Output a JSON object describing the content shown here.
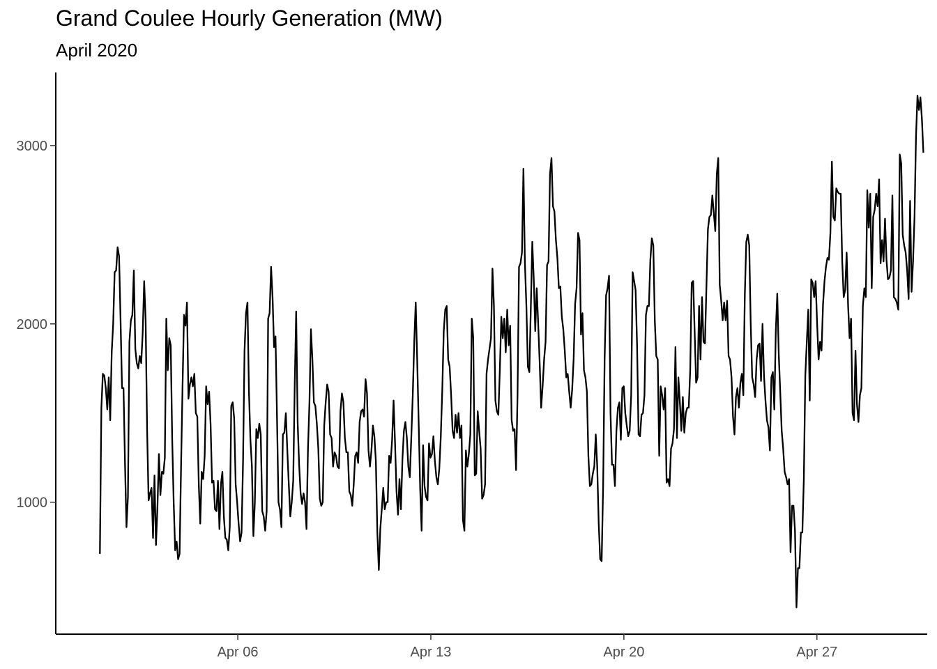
{
  "chart_data": {
    "type": "line",
    "title": "Grand Coulee Hourly Generation (MW)",
    "subtitle": "April 2020",
    "xlabel": "",
    "ylabel": "",
    "x_domain": [
      "2020-04-01",
      "2020-05-01"
    ],
    "xlim_days": [
      30.4,
      62.0
    ],
    "ylim": [
      260,
      3410
    ],
    "grid": false,
    "line_color": "#000000",
    "x_ticks": [
      {
        "day": 37,
        "label": "Apr 06"
      },
      {
        "day": 44,
        "label": "Apr 13"
      },
      {
        "day": 51,
        "label": "Apr 20"
      },
      {
        "day": 58,
        "label": "Apr 27"
      }
    ],
    "y_ticks": [
      {
        "value": 1000,
        "label": "1000"
      },
      {
        "value": 2000,
        "label": "2000"
      },
      {
        "value": 3000,
        "label": "3000"
      }
    ],
    "series": [
      {
        "values_every_2h": [
          710,
          1530,
          1720,
          1710,
          1640,
          1520,
          1700,
          1460,
          1840,
          2000,
          2290,
          2300,
          2430,
          2380,
          2020,
          1640,
          1640,
          1220,
          860,
          1030,
          1900,
          2020,
          2050,
          2300,
          1860,
          1780,
          1750,
          1820,
          1780,
          1950,
          2240,
          2020,
          1400,
          1010,
          1050,
          1080,
          800,
          1150,
          760,
          970,
          1270,
          1040,
          1170,
          1160,
          1250,
          2030,
          1740,
          1920,
          1880,
          1350,
          1000,
          730,
          780,
          680,
          710,
          1200,
          1650,
          2050,
          1990,
          2120,
          1580,
          1660,
          1700,
          1650,
          1720,
          1500,
          1480,
          1100,
          880,
          1170,
          1130,
          1260,
          1650,
          1550,
          1620,
          1440,
          1110,
          1120,
          960,
          950,
          1120,
          850,
          1100,
          1170,
          920,
          800,
          790,
          730,
          860,
          1540,
          1560,
          1470,
          1100,
          1000,
          880,
          780,
          830,
          1230,
          1850,
          2060,
          2120,
          1620,
          1350,
          1200,
          810,
          1000,
          1410,
          1360,
          1440,
          1380,
          950,
          920,
          840,
          950,
          2030,
          2060,
          2320,
          2150,
          1870,
          1930,
          1480,
          1000,
          960,
          860,
          1380,
          1390,
          1500,
          1290,
          1100,
          920,
          1000,
          1120,
          1650,
          2070,
          1450,
          1210,
          1050,
          990,
          1050,
          1000,
          850,
          1300,
          1560,
          1970,
          1800,
          1560,
          1540,
          1440,
          1300,
          1020,
          980,
          1000,
          1430,
          1560,
          1660,
          1620,
          1380,
          1360,
          1200,
          1280,
          1260,
          1200,
          1190,
          1510,
          1610,
          1560,
          1360,
          1280,
          1280,
          1060,
          1040,
          980,
          1100,
          1260,
          1280,
          1220,
          1450,
          1510,
          1520,
          1480,
          1690,
          1610,
          1290,
          1200,
          1290,
          1430,
          1370,
          1230,
          830,
          620,
          850,
          960,
          1080,
          960,
          1000,
          1000,
          1260,
          1220,
          1350,
          1570,
          1330,
          1060,
          930,
          1130,
          960,
          1240,
          1400,
          1450,
          1360,
          1200,
          1140,
          1360,
          1600,
          1900,
          2120,
          1800,
          1450,
          1080,
          840,
          1320,
          1090,
          1030,
          1010,
          1330,
          1250,
          1270,
          1370,
          1230,
          1140,
          1100,
          1190,
          1370,
          1630,
          1960,
          2080,
          2100,
          1800,
          1760,
          1600,
          1400,
          1360,
          1490,
          1390,
          1500,
          1360,
          1430,
          900,
          840,
          1290,
          1200,
          1270,
          1380,
          2030,
          1920,
          1150,
          1160,
          1510,
          1400,
          1300,
          1020,
          1040,
          1100,
          1720,
          1800,
          1860,
          1920,
          2310,
          2100,
          1570,
          1510,
          1490,
          1740,
          2040,
          1920,
          2030,
          1840,
          2080,
          1880,
          1990,
          1460,
          1400,
          1410,
          1180,
          1600,
          2320,
          2340,
          2400,
          2870,
          2340,
          2100,
          1760,
          1730,
          2090,
          2460,
          2250,
          1960,
          2200,
          2000,
          1780,
          1530,
          1650,
          1800,
          1900,
          2330,
          2350,
          2840,
          2930,
          2660,
          2630,
          2470,
          2370,
          2200,
          2210,
          2040,
          1970,
          1850,
          1700,
          1720,
          1620,
          1530,
          1630,
          1800,
          2110,
          2200,
          2510,
          2470,
          1940,
          2060,
          1740,
          1700,
          1620,
          1260,
          1090,
          1100,
          1160,
          1200,
          1380,
          1200,
          880,
          680,
          670,
          1090,
          1800,
          2160,
          2200,
          2270,
          1500,
          1210,
          1210,
          1090,
          1400,
          1530,
          1560,
          1350,
          1640,
          1650,
          1500,
          1430,
          1370,
          1400,
          1600,
          2290,
          2240,
          2190,
          1880,
          1380,
          1370,
          1490,
          1500,
          1600,
          2050,
          2100,
          2100,
          2360,
          2480,
          2440,
          2020,
          1820,
          1800,
          1260,
          1650,
          1600,
          1520,
          1640,
          1110,
          1130,
          1090,
          1300,
          1330,
          1410,
          1870,
          1360,
          1700,
          1560,
          1400,
          1590,
          1390,
          1500,
          1530,
          1530,
          1740,
          2230,
          2240,
          1960,
          1670,
          1700,
          2100,
          1800,
          2150,
          1900,
          1890,
          2210,
          2530,
          2600,
          2610,
          2720,
          2620,
          2520,
          2840,
          2930,
          2220,
          2130,
          2020,
          2120,
          2020,
          2130,
          1820,
          1800,
          1700,
          1480,
          1380,
          1590,
          1640,
          1530,
          1670,
          1720,
          1600,
          2160,
          2460,
          2500,
          2440,
          2000,
          1700,
          1660,
          1590,
          1800,
          1880,
          1890,
          1680,
          2000,
          1710,
          1570,
          1460,
          1420,
          1290,
          1700,
          1730,
          1520,
          1960,
          2170,
          1830,
          1620,
          1400,
          1300,
          1170,
          1140,
          1100,
          1130,
          720,
          980,
          980,
          840,
          410,
          630,
          630,
          830,
          830,
          1130,
          1710,
          1900,
          2080,
          1570,
          2250,
          2230,
          2150,
          2240,
          2000,
          1800,
          1900,
          1850,
          2110,
          2240,
          2320,
          2370,
          2360,
          2510,
          2910,
          2600,
          2580,
          2760,
          2740,
          2730,
          2730,
          2350,
          2150,
          2190,
          2400,
          2100,
          1920,
          2030,
          1500,
          1460,
          1850,
          1550,
          1450,
          1600,
          1640,
          2100,
          2200,
          2150,
          2750,
          2540,
          2730,
          2200,
          2600,
          2640,
          2730,
          2660,
          2810,
          2340,
          2470,
          2350,
          2590,
          2360,
          2250,
          2260,
          2300,
          2720,
          2150,
          2140,
          2120,
          2080,
          2950,
          2900,
          2500,
          2440,
          2400,
          2300,
          2140,
          2690,
          2180,
          2350,
          2600,
          3050,
          3280,
          3200,
          3270,
          3150,
          2960
        ]
      }
    ]
  }
}
